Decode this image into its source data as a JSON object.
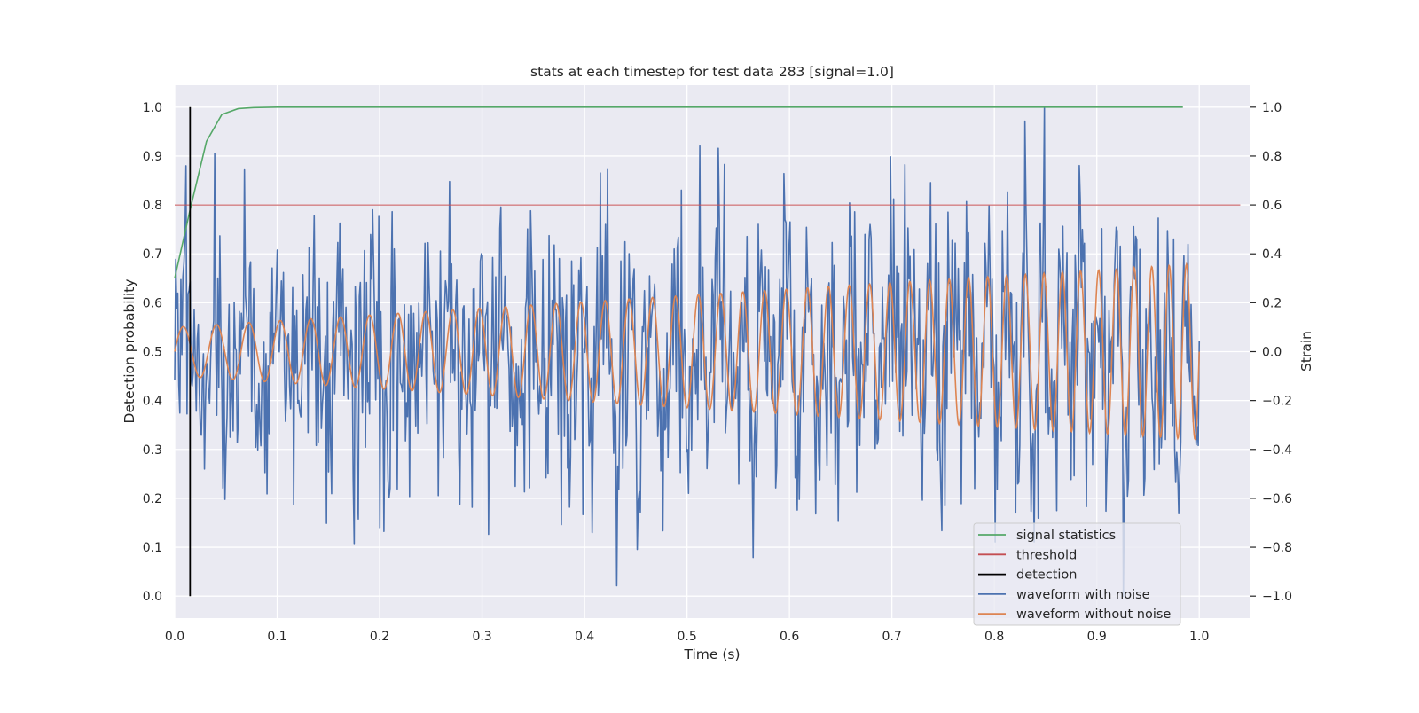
{
  "chart_data": {
    "type": "line",
    "title": "stats at each timestep for test data 283 [signal=1.0]",
    "xlabel": "Time (s)",
    "ylabel": "Detection probability",
    "y2label": "Strain",
    "xlim": [
      0.0,
      1.05
    ],
    "ylim": [
      -0.045,
      1.045
    ],
    "y2lim": [
      -1.09,
      1.09
    ],
    "xticks": [
      0.0,
      0.1,
      0.2,
      0.3,
      0.4,
      0.5,
      0.6,
      0.7,
      0.8,
      0.9,
      1.0
    ],
    "xtick_labels": [
      "0.0",
      "0.1",
      "0.2",
      "0.3",
      "0.4",
      "0.5",
      "0.6",
      "0.7",
      "0.8",
      "0.9",
      "1.0"
    ],
    "yticks": [
      0.0,
      0.1,
      0.2,
      0.3,
      0.4,
      0.5,
      0.6,
      0.7,
      0.8,
      0.9,
      1.0
    ],
    "ytick_labels": [
      "0.0",
      "0.1",
      "0.2",
      "0.3",
      "0.4",
      "0.5",
      "0.6",
      "0.7",
      "0.8",
      "0.9",
      "1.0"
    ],
    "y2ticks": [
      -1.0,
      -0.8,
      -0.6,
      -0.4,
      -0.2,
      0.0,
      0.2,
      0.4,
      0.6,
      0.8,
      1.0
    ],
    "y2tick_labels": [
      "−1.0",
      "−0.8",
      "−0.6",
      "−0.4",
      "−0.2",
      "0.0",
      "0.2",
      "0.4",
      "0.6",
      "0.8",
      "1.0"
    ],
    "grid": true,
    "legend_position": "lower-right",
    "colors": {
      "background": "#eaeaf2",
      "grid": "#ffffff",
      "signal_statistics": "#55a868",
      "threshold": "#c44e52",
      "detection": "#000000",
      "waveform_with_noise": "#4c72b0",
      "waveform_without_noise": "#dd8452"
    },
    "legend": [
      {
        "label": "signal statistics",
        "color": "#55a868"
      },
      {
        "label": "threshold",
        "color": "#c44e52"
      },
      {
        "label": "detection",
        "color": "#000000"
      },
      {
        "label": "waveform with noise",
        "color": "#4c72b0"
      },
      {
        "label": "waveform without noise",
        "color": "#dd8452"
      }
    ],
    "series": [
      {
        "name": "signal statistics",
        "axis": "left",
        "x": [
          0.0,
          0.015,
          0.031,
          0.046,
          0.062,
          0.077,
          0.1,
          0.2,
          0.3,
          0.4,
          0.5,
          0.6,
          0.7,
          0.8,
          0.9,
          0.984
        ],
        "y": [
          0.65,
          0.79,
          0.93,
          0.985,
          0.997,
          0.999,
          1.0,
          1.0,
          1.0,
          1.0,
          1.0,
          1.0,
          1.0,
          1.0,
          1.0,
          1.0
        ]
      },
      {
        "name": "threshold",
        "axis": "left",
        "x": [
          0.0,
          1.04
        ],
        "y": [
          0.8,
          0.8
        ]
      },
      {
        "name": "detection",
        "axis": "left",
        "x": [
          0.015,
          0.015
        ],
        "y": [
          0.0,
          1.0
        ]
      },
      {
        "name": "waveform with noise",
        "axis": "right",
        "x_start": 0.0,
        "x_end": 1.0,
        "n_points": 1000,
        "noise_std": 0.28,
        "noise_seed": 283,
        "clip": [
          -1.0,
          1.0
        ]
      },
      {
        "name": "waveform without noise",
        "axis": "right",
        "x_start": 0.0,
        "x_end": 1.0,
        "n_points": 2000,
        "amplitude_start": 0.1,
        "amplitude_end": 0.36,
        "frequency_start_hz": 30,
        "frequency_end_hz": 60
      }
    ]
  }
}
